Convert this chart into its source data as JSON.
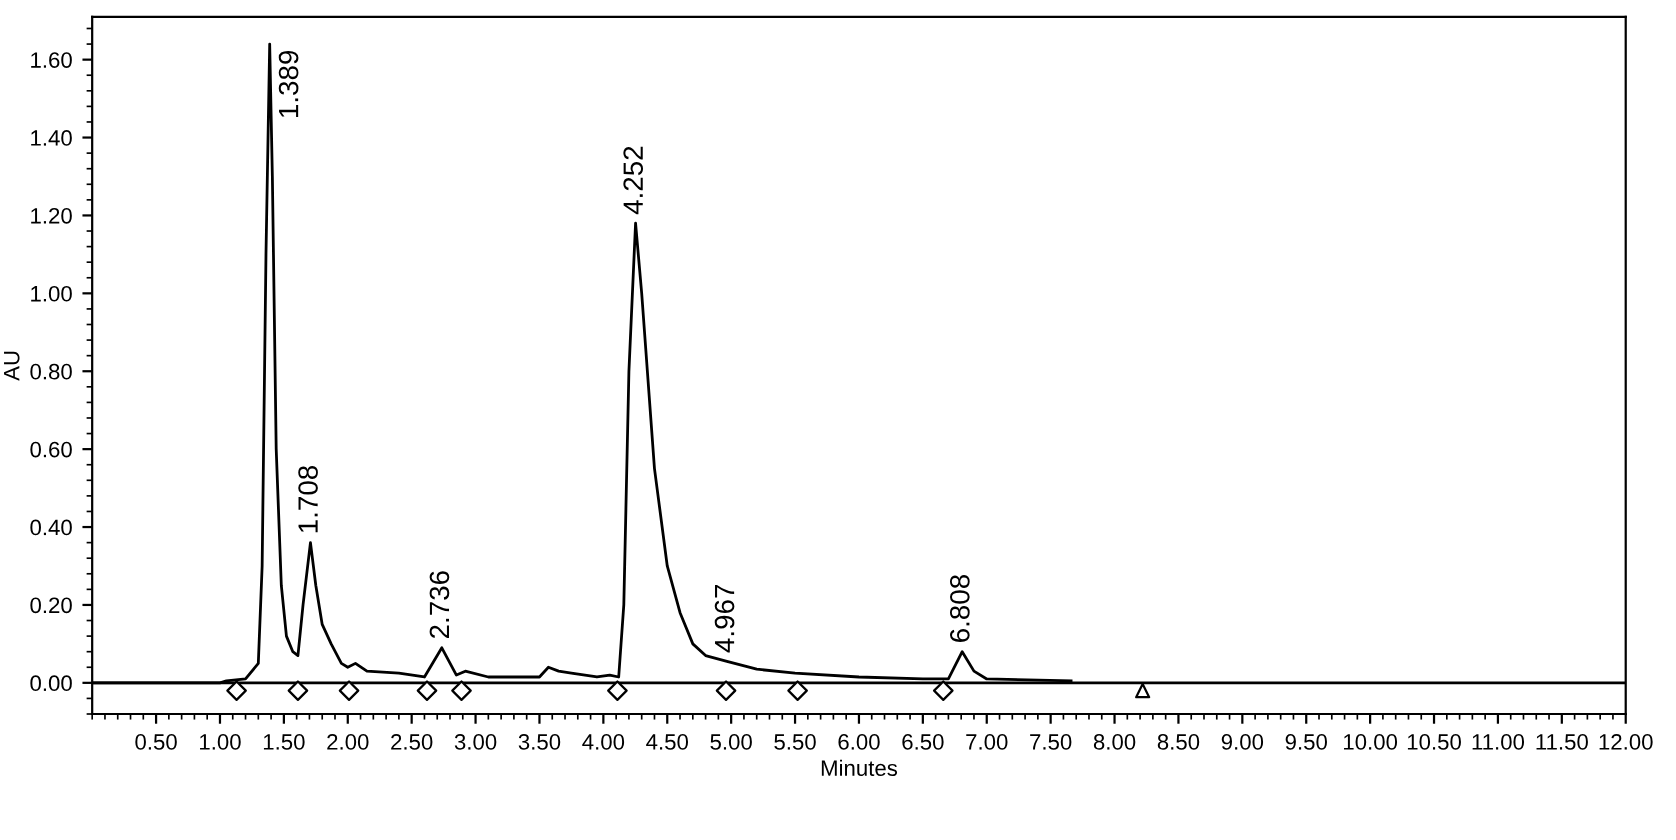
{
  "chart_data": {
    "type": "line",
    "xlabel": "Minutes",
    "ylabel": "AU",
    "xlim": [
      0,
      12
    ],
    "ylim": [
      -0.08,
      1.71
    ],
    "xticks": [
      {
        "value": 0.5,
        "label": "0.50"
      },
      {
        "value": 1,
        "label": "1.00"
      },
      {
        "value": 1.5,
        "label": "1.50"
      },
      {
        "value": 2,
        "label": "2.00"
      },
      {
        "value": 2.5,
        "label": "2.50"
      },
      {
        "value": 3,
        "label": "3.00"
      },
      {
        "value": 3.5,
        "label": "3.50"
      },
      {
        "value": 4,
        "label": "4.00"
      },
      {
        "value": 4.5,
        "label": "4.50"
      },
      {
        "value": 5,
        "label": "5.00"
      },
      {
        "value": 5.5,
        "label": "5.50"
      },
      {
        "value": 6,
        "label": "6.00"
      },
      {
        "value": 6.5,
        "label": "6.50"
      },
      {
        "value": 7,
        "label": "7.00"
      },
      {
        "value": 7.5,
        "label": "7.50"
      },
      {
        "value": 8,
        "label": "8.00"
      },
      {
        "value": 8.5,
        "label": "8.50"
      },
      {
        "value": 9,
        "label": "9.00"
      },
      {
        "value": 9.5,
        "label": "9.50"
      },
      {
        "value": 10,
        "label": "10.00"
      },
      {
        "value": 10.5,
        "label": "10.50"
      },
      {
        "value": 11,
        "label": "11.00"
      },
      {
        "value": 11.5,
        "label": "11.50"
      },
      {
        "value": 12,
        "label": "12.00"
      }
    ],
    "yticks": [
      {
        "value": 0,
        "label": "0.00"
      },
      {
        "value": 0.2,
        "label": "0.20"
      },
      {
        "value": 0.4,
        "label": "0.40"
      },
      {
        "value": 0.6,
        "label": "0.60"
      },
      {
        "value": 0.8,
        "label": "0.80"
      },
      {
        "value": 1,
        "label": "1.00"
      },
      {
        "value": 1.2,
        "label": "1.20"
      },
      {
        "value": 1.4,
        "label": "1.40"
      },
      {
        "value": 1.6,
        "label": "1.60"
      }
    ],
    "grid": false,
    "legend": false,
    "series": [
      {
        "color": "#000000",
        "marker": "none",
        "line_style": "solid",
        "x": [
          0,
          1.0,
          1.05,
          1.2,
          1.3,
          1.33,
          1.36,
          1.389,
          1.41,
          1.44,
          1.48,
          1.52,
          1.57,
          1.61,
          1.65,
          1.708,
          1.75,
          1.8,
          1.87,
          1.95,
          2.0,
          2.06,
          2.15,
          2.4,
          2.6,
          2.736,
          2.85,
          2.92,
          3.1,
          3.5,
          3.57,
          3.65,
          3.75,
          3.95,
          4.05,
          4.12,
          4.16,
          4.2,
          4.252,
          4.3,
          4.4,
          4.5,
          4.6,
          4.7,
          4.8,
          4.967,
          5.2,
          5.5,
          6.0,
          6.5,
          6.7,
          6.808,
          6.9,
          7.0,
          7.66
        ],
        "values": [
          0,
          0,
          0.005,
          0.01,
          0.05,
          0.3,
          1.1,
          1.64,
          1.3,
          0.6,
          0.25,
          0.12,
          0.08,
          0.07,
          0.2,
          0.36,
          0.25,
          0.15,
          0.1,
          0.05,
          0.04,
          0.05,
          0.03,
          0.025,
          0.015,
          0.09,
          0.02,
          0.03,
          0.015,
          0.015,
          0.04,
          0.03,
          0.025,
          0.015,
          0.02,
          0.015,
          0.2,
          0.8,
          1.18,
          1.0,
          0.55,
          0.3,
          0.18,
          0.1,
          0.07,
          0.055,
          0.035,
          0.025,
          0.015,
          0.01,
          0.01,
          0.08,
          0.03,
          0.01,
          0.005
        ]
      },
      {
        "type": "scatter",
        "color": "#000000",
        "marker": "diamond",
        "x": [
          1.13,
          1.61,
          2.01,
          2.62,
          2.89,
          4.11,
          4.96,
          5.52,
          6.66
        ],
        "values": [
          -0.02,
          -0.02,
          -0.02,
          -0.02,
          -0.02,
          -0.02,
          -0.02,
          -0.02,
          -0.02
        ]
      },
      {
        "type": "scatter",
        "color": "#000000",
        "marker": "triangle",
        "x": [
          8.22
        ],
        "values": [
          -0.02
        ]
      }
    ],
    "ref_lines": [
      {
        "axis": "y",
        "value": 0,
        "color": "#000000",
        "line_style": "solid"
      }
    ],
    "annotations": [
      {
        "text": "1.389",
        "x": 1.389,
        "y": 1.64
      },
      {
        "text": "1.708",
        "x": 1.708,
        "y": 0.36
      },
      {
        "text": "2.736",
        "x": 2.736,
        "y": 0.09
      },
      {
        "text": "4.252",
        "x": 4.252,
        "y": 1.18
      },
      {
        "text": "4.967",
        "x": 4.967,
        "y": 0.055
      },
      {
        "text": "6.808",
        "x": 6.808,
        "y": 0.08
      }
    ]
  }
}
